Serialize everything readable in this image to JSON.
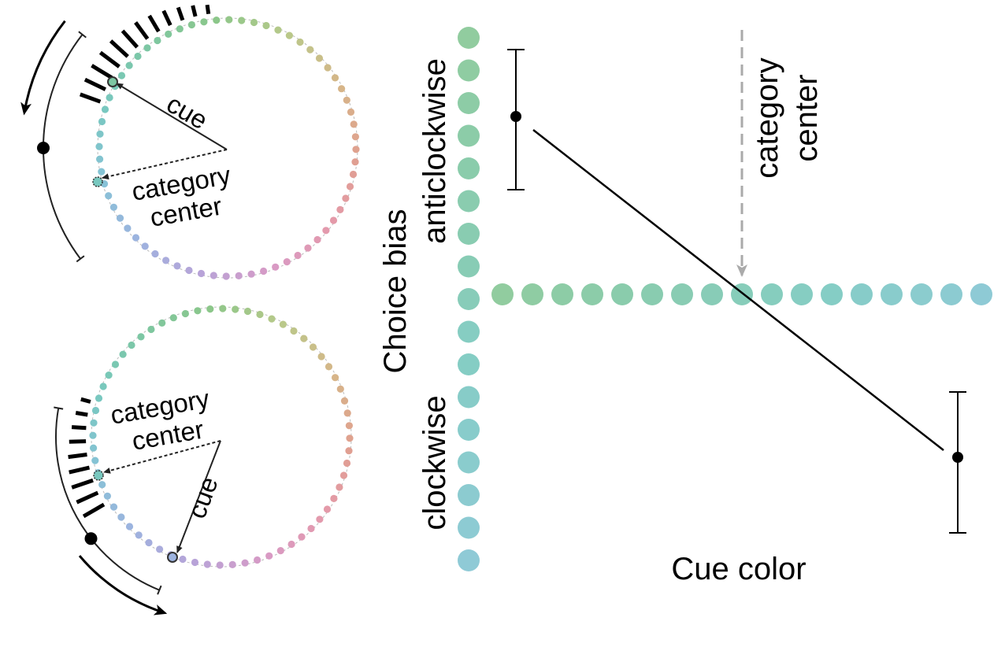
{
  "top_wheel": {
    "cue_label": "cue",
    "center_label_line1": "category",
    "center_label_line2": "center"
  },
  "bottom_wheel": {
    "cue_label": "cue",
    "center_label_line1": "category",
    "center_label_line2": "center"
  },
  "axes": {
    "y_label": "Choice bias",
    "y_upper_label": "anticlockwise",
    "y_lower_label": "clockwise",
    "x_label": "Cue color",
    "center_marker_line1": "category",
    "center_marker_line2": "center"
  },
  "colors": {
    "arrow": "#000000",
    "dashed_marker": "#aaaaaa",
    "hue_wheel": [
      "#8cc78a",
      "#b9c98a",
      "#d6b689",
      "#e0a08f",
      "#e49aaa",
      "#d99ac4",
      "#b8a3d8",
      "#9db3df",
      "#86c3d6",
      "#78c8bf",
      "#7dc7a3"
    ]
  }
}
